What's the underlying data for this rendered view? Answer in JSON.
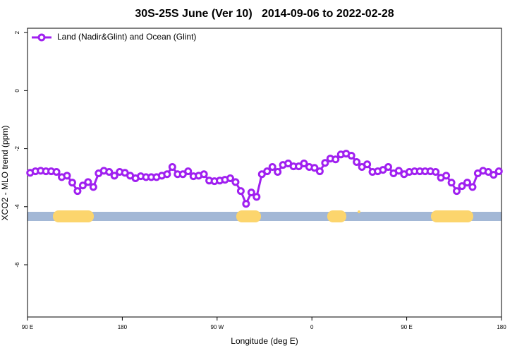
{
  "chart_data": {
    "type": "line",
    "title": "30S-25S June (Ver 10)   2014-09-06 to 2022-02-28",
    "x_label": "Longitude (deg E)",
    "y_label": "XCO2 - MLO trend (ppm)",
    "xlim": [
      90,
      540
    ],
    "xticks": [
      {
        "value": 90,
        "label": "90 E"
      },
      180,
      {
        "value": 270,
        "label": "90 W"
      },
      {
        "value": 360,
        "label": "0"
      },
      {
        "value": 450,
        "label": "90 E"
      },
      {
        "value": 540,
        "label": "180"
      }
    ],
    "ylim": [
      -7.8,
      2.15
    ],
    "yticks": [
      2,
      0,
      -2,
      -4,
      -6
    ],
    "legend": "top-left",
    "x": [
      92.5,
      97.5,
      102.5,
      107.5,
      112.5,
      117.5,
      122.5,
      127.5,
      132.5,
      137.5,
      142.5,
      147.5,
      152.5,
      157.5,
      162.5,
      167.5,
      172.5,
      177.5,
      182.5,
      187.5,
      192.5,
      197.5,
      202.5,
      207.5,
      212.5,
      217.5,
      222.5,
      227.5,
      232.5,
      237.5,
      242.5,
      247.5,
      252.5,
      257.5,
      262.5,
      267.5,
      272.5,
      277.5,
      282.5,
      287.5,
      292.5,
      297.5,
      302.5,
      307.5,
      312.5,
      317.5,
      322.5,
      327.5,
      332.5,
      337.5,
      342.5,
      347.5,
      352.5,
      357.5,
      362.5,
      367.5,
      372.5,
      377.5,
      382.5,
      387.5,
      392.5,
      397.5,
      402.5,
      407.5,
      412.5,
      417.5,
      422.5,
      427.5,
      432.5,
      437.5,
      442.5,
      447.5,
      452.5,
      457.5,
      462.5,
      467.5,
      472.5,
      477.5,
      482.5,
      487.5,
      492.5,
      497.5,
      502.5,
      507.5,
      512.5,
      517.5,
      522.5,
      527.5,
      532.5,
      537.5
    ],
    "series": [
      {
        "name": "Land (Nadir&Glint) and Ocean (Glint)",
        "color": "#a020f0",
        "values": [
          -2.83,
          -2.78,
          -2.76,
          -2.78,
          -2.78,
          -2.8,
          -2.98,
          -2.93,
          -3.17,
          -3.46,
          -3.27,
          -3.15,
          -3.32,
          -2.85,
          -2.76,
          -2.8,
          -2.93,
          -2.8,
          -2.83,
          -2.93,
          -3.02,
          -2.95,
          -2.98,
          -2.98,
          -2.98,
          -2.93,
          -2.88,
          -2.63,
          -2.88,
          -2.88,
          -2.78,
          -2.95,
          -2.93,
          -2.88,
          -3.1,
          -3.12,
          -3.1,
          -3.07,
          -3.02,
          -3.15,
          -3.46,
          -3.9,
          -3.51,
          -3.66,
          -2.88,
          -2.78,
          -2.63,
          -2.8,
          -2.56,
          -2.51,
          -2.61,
          -2.61,
          -2.51,
          -2.63,
          -2.66,
          -2.78,
          -2.49,
          -2.34,
          -2.37,
          -2.2,
          -2.17,
          -2.24,
          -2.46,
          -2.63,
          -2.54,
          -2.8,
          -2.78,
          -2.73,
          -2.63,
          -2.85,
          -2.76,
          -2.88,
          -2.8,
          -2.78,
          -2.78,
          -2.78,
          -2.78,
          -2.8,
          -3.0,
          -2.93,
          -3.17,
          -3.46,
          -3.29,
          -3.17,
          -3.32,
          -2.85,
          -2.76,
          -2.8,
          -2.9,
          -2.78
        ]
      }
    ]
  }
}
